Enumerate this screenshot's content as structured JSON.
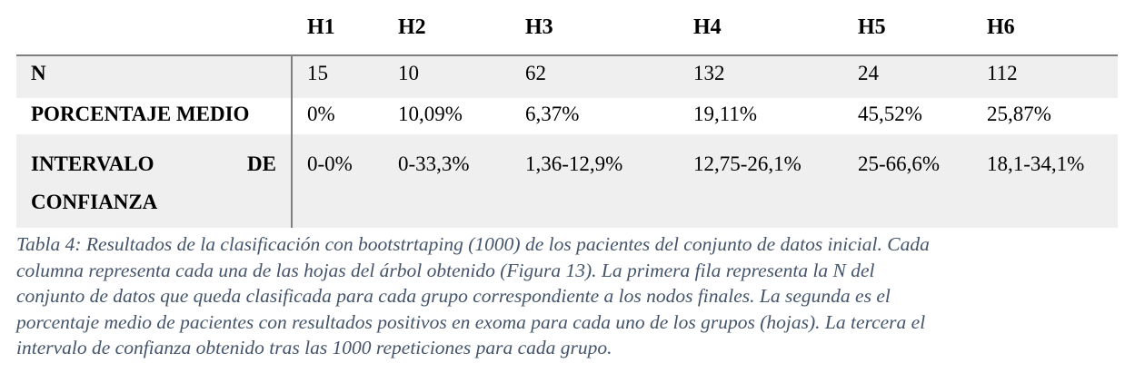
{
  "table": {
    "headers": [
      "H1",
      "H2",
      "H3",
      "H4",
      "H5",
      "H6"
    ],
    "rows": [
      {
        "label": "N",
        "values": [
          "15",
          "10",
          "62",
          "132",
          "24",
          "112"
        ]
      },
      {
        "label": "PORCENTAJE MEDIO",
        "values": [
          "0%",
          "10,09%",
          "6,37%",
          "19,11%",
          "45,52%",
          "25,87%"
        ]
      },
      {
        "label_part1": "INTERVALO",
        "label_part2": "DE",
        "label_part3": "CONFIANZA",
        "values": [
          "0-0%",
          "0-33,3%",
          "1,36-12,9%",
          "12,75-26,1%",
          "25-66,6%",
          "18,1-34,1%"
        ]
      }
    ]
  },
  "caption": {
    "line1": "Tabla 4: Resultados de la clasificación con bootstrtaping (1000) de los pacientes del conjunto de datos inicial. Cada",
    "line2": "columna representa cada una de las hojas del árbol obtenido (Figura 13). La primera fila representa la N del",
    "line3": "conjunto de datos que queda clasificada para cada grupo correspondiente a los nodos finales. La segunda es el",
    "line4": "porcentaje medio de pacientes con resultados positivos en exoma para cada uno de los grupos (hojas). La tercera el",
    "line5": "intervalo de confianza obtenido tras las 1000 repeticiones para cada grupo."
  },
  "colors": {
    "row_shade": "#efefef",
    "rule": "#7f7f7f",
    "caption_text": "#44546a"
  }
}
